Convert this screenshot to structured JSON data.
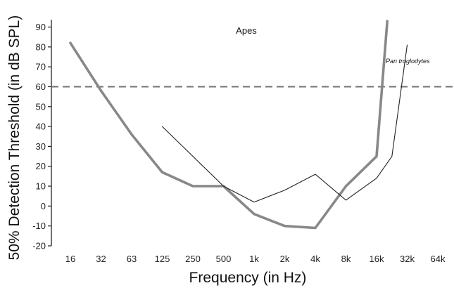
{
  "chart_data": {
    "type": "line",
    "title": "Apes",
    "xlabel": "Frequency (in Hz)",
    "ylabel": "50% Detection Threshold (in dB SPL)",
    "x_categories": [
      "16",
      "32",
      "63",
      "125",
      "250",
      "500",
      "1k",
      "2k",
      "4k",
      "8k",
      "16k",
      "32k",
      "64k"
    ],
    "y_ticks": [
      90,
      80,
      70,
      60,
      50,
      40,
      30,
      20,
      10,
      0,
      -10,
      -20
    ],
    "ylim": [
      -20,
      92
    ],
    "grid": false,
    "reference_line": {
      "y": 60,
      "style": "dashed"
    },
    "series": [
      {
        "color": "#888888",
        "points": [
          {
            "x": "16",
            "y": 82
          },
          {
            "x": "32",
            "y": 58
          },
          {
            "x": "63",
            "y": 36
          },
          {
            "x": "125",
            "y": 17
          },
          {
            "x": "250",
            "y": 10
          },
          {
            "x": "500",
            "y": 10
          },
          {
            "x": "1k",
            "y": -4
          },
          {
            "x": "2k",
            "y": -10
          },
          {
            "x": "4k",
            "y": -11
          },
          {
            "x": "8k",
            "y": 10
          },
          {
            "x": "16k",
            "y": 25
          },
          {
            "x": "16k+",
            "y": 93
          }
        ]
      },
      {
        "name": "Pan troglodytes",
        "color": "#222222",
        "points": [
          {
            "x": "125",
            "y": 40
          },
          {
            "x": "500",
            "y": 10
          },
          {
            "x": "1k",
            "y": 2
          },
          {
            "x": "2k",
            "y": 8
          },
          {
            "x": "4k",
            "y": 16
          },
          {
            "x": "8k",
            "y": 3
          },
          {
            "x": "16k",
            "y": 14
          },
          {
            "x": "22k",
            "y": 25
          },
          {
            "x": "32k",
            "y": 81
          }
        ]
      }
    ]
  }
}
